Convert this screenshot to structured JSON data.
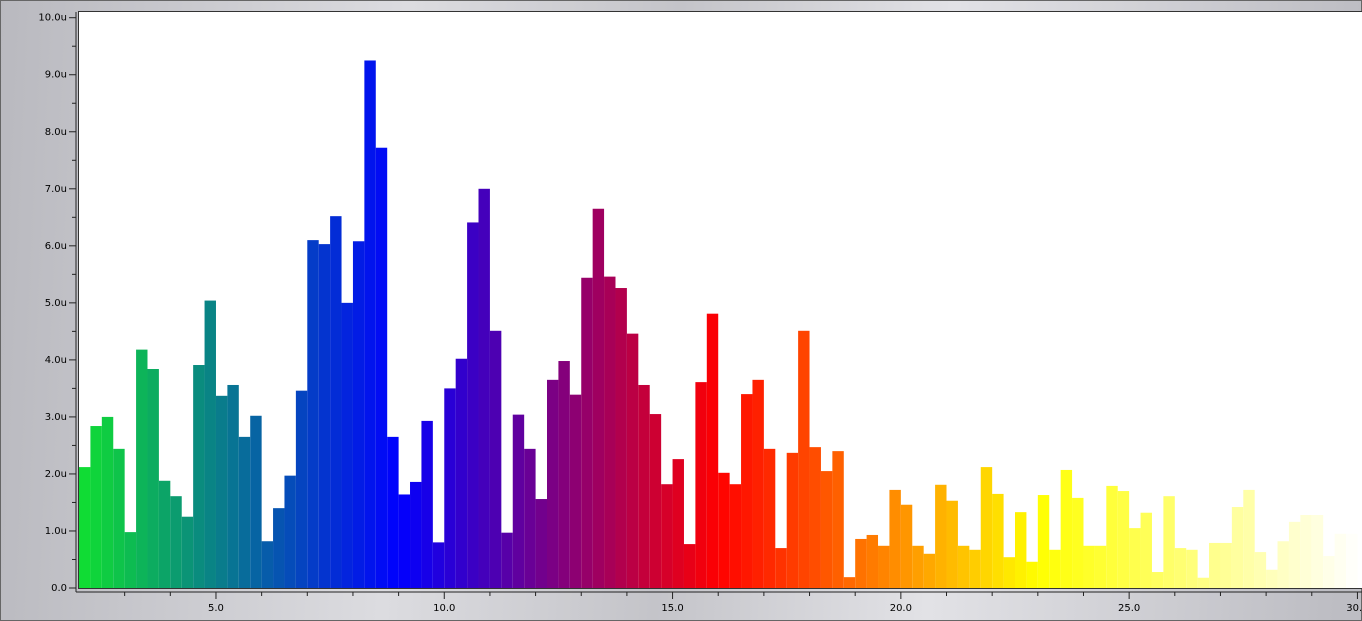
{
  "chart_data": {
    "type": "histogram",
    "bins": [
      2,
      2.25,
      2.5,
      2.75,
      3,
      3.25,
      3.5,
      3.75,
      4,
      4.25,
      4.5,
      4.75,
      5,
      5.25,
      5.5,
      5.75,
      6,
      6.25,
      6.5,
      6.75,
      7,
      7.25,
      7.5,
      7.75,
      8,
      8.25,
      8.5,
      8.75,
      9,
      9.25,
      9.5,
      9.75,
      10,
      10.25,
      10.5,
      10.75,
      11,
      11.25,
      11.5,
      11.75,
      12,
      12.25,
      12.5,
      12.75,
      13,
      13.25,
      13.5,
      13.75,
      14,
      14.25,
      14.5,
      14.75,
      15,
      15.25,
      15.5,
      15.75,
      16,
      16.25,
      16.5,
      16.75,
      17,
      17.25,
      17.5,
      17.75,
      18,
      18.25,
      18.5,
      18.75,
      19,
      19.25,
      19.5,
      19.75,
      20,
      20.25,
      20.5,
      20.75,
      21,
      21.25,
      21.5,
      21.75,
      22,
      22.25,
      22.5,
      22.75,
      23,
      23.25,
      23.5,
      23.75,
      24,
      24.25,
      24.5,
      24.75,
      25,
      25.25,
      25.5,
      25.75,
      26,
      26.25,
      26.5,
      26.75,
      27,
      27.25,
      27.5,
      27.75,
      28,
      28.25,
      28.5,
      28.75,
      29,
      29.25,
      29.5,
      29.75,
      30
    ],
    "values": [
      2.12,
      2.84,
      3.0,
      2.44,
      0.98,
      4.18,
      3.84,
      1.88,
      1.61,
      1.25,
      3.91,
      5.04,
      3.37,
      3.56,
      2.65,
      3.02,
      0.82,
      1.4,
      1.97,
      3.46,
      6.1,
      6.03,
      6.52,
      5.0,
      6.08,
      9.25,
      7.72,
      2.65,
      1.64,
      1.86,
      2.93,
      0.8,
      3.5,
      4.02,
      6.41,
      7.0,
      4.51,
      0.97,
      3.04,
      2.44,
      1.56,
      3.65,
      3.98,
      3.39,
      5.44,
      6.65,
      5.46,
      5.26,
      4.46,
      3.56,
      3.05,
      1.82,
      2.26,
      0.77,
      3.61,
      4.81,
      2.02,
      1.82,
      3.4,
      3.65,
      2.44,
      0.7,
      2.37,
      4.51,
      2.47,
      2.05,
      2.4,
      0.19,
      0.86,
      0.93,
      0.74,
      1.72,
      1.46,
      0.74,
      0.6,
      1.81,
      1.53,
      0.74,
      0.67,
      2.12,
      1.65,
      0.54,
      1.33,
      0.46,
      1.63,
      0.67,
      2.07,
      1.58,
      0.74,
      0.74,
      1.79,
      1.7,
      1.05,
      1.32,
      0.28,
      1.61,
      0.7,
      0.67,
      0.18,
      0.79,
      0.79,
      1.42,
      1.72,
      0.63,
      0.32,
      0.82,
      1.16,
      1.28,
      1.28,
      0.56,
      0.95,
      0.95
    ],
    "colors": [
      "#10e030",
      "#0000ff",
      "#ff0000",
      "#ffff00",
      "#ffffff"
    ],
    "xlim": [
      2,
      30.1
    ],
    "xticks": [
      {
        "value": 5,
        "label": "5.0"
      },
      {
        "value": 10,
        "label": "10.0"
      },
      {
        "value": 15,
        "label": "15.0"
      },
      {
        "value": 20,
        "label": "20.0"
      },
      {
        "value": 25,
        "label": "25.0"
      },
      {
        "value": 30,
        "label": "30.0"
      }
    ],
    "xminorticks": [
      3,
      4,
      6,
      7,
      8,
      9,
      11,
      12,
      13,
      14,
      16,
      17,
      18,
      19,
      21,
      22,
      23,
      24,
      26,
      27,
      28,
      29
    ],
    "ylim": [
      0,
      10.1
    ],
    "yticks": [
      {
        "value": 0,
        "label": "0.0"
      },
      {
        "value": 1,
        "label": "1.0u"
      },
      {
        "value": 2,
        "label": "2.0u"
      },
      {
        "value": 3,
        "label": "3.0u"
      },
      {
        "value": 4,
        "label": "4.0u"
      },
      {
        "value": 5,
        "label": "5.0u"
      },
      {
        "value": 6,
        "label": "6.0u"
      },
      {
        "value": 7,
        "label": "7.0u"
      },
      {
        "value": 8,
        "label": "8.0u"
      },
      {
        "value": 9,
        "label": "9.0u"
      },
      {
        "value": 10,
        "label": "10.0u"
      }
    ],
    "yminorticks": [
      0.5,
      1.5,
      2.5,
      3.5,
      4.5,
      5.5,
      6.5,
      7.5,
      8.5,
      9.5
    ]
  }
}
